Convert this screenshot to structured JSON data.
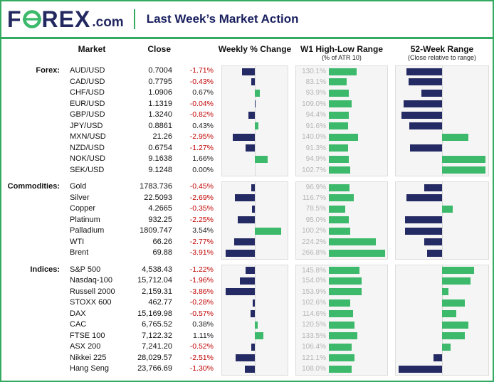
{
  "header": {
    "logo_f": "F",
    "logo_rex": "REX",
    "logo_com": ".com",
    "title": "Last Week’s Market Action"
  },
  "columns": {
    "market": "Market",
    "close": "Close",
    "weekly": "Weekly % Change",
    "w1": "W1 High-Low Range",
    "w1_sub": "(% of ATR 10)",
    "r52": "52-Week Range",
    "r52_sub": "(Close relative to range)"
  },
  "colors": {
    "navy": "#242a63",
    "green": "#3cb96a",
    "negative_text": "#c00000",
    "positive_text": "#1a1a1a",
    "w1_label": "#b5b5b5",
    "accent_border": "#35ab62"
  },
  "chart_data": {
    "type": "table",
    "title": "Last Week’s Market Action",
    "columns": [
      "Market",
      "Close",
      "Weekly % Change",
      "W1 High-Low Range (% of ATR 10)",
      "52-Week Range (Close relative to range)"
    ],
    "notes": "Weekly % bars: navy = negative, green = positive, anchored at zero. 52-week bars show close position vs range midpoint; pos_52w_pct estimated from pixels (0 = 52-wk low, 100 = 52-wk high).",
    "groups": [
      {
        "label": "Forex:",
        "rows": [
          {
            "market": "AUD/USD",
            "close": "0.7004",
            "weekly_change_pct": -1.71,
            "weekly_change": "-1.71%",
            "w1_range_pct": 130.1,
            "w1_range": "130.1%",
            "pos_52w_pct": 10
          },
          {
            "market": "CAD/USD",
            "close": "0.7795",
            "weekly_change_pct": -0.43,
            "weekly_change": "-0.43%",
            "w1_range_pct": 83.1,
            "w1_range": "83.1%",
            "pos_52w_pct": 12
          },
          {
            "market": "CHF/USD",
            "close": "1.0906",
            "weekly_change_pct": 0.67,
            "weekly_change": "0.67%",
            "w1_range_pct": 93.9,
            "w1_range": "93.9%",
            "pos_52w_pct": 27
          },
          {
            "market": "EUR/USD",
            "close": "1.1319",
            "weekly_change_pct": -0.04,
            "weekly_change": "-0.04%",
            "w1_range_pct": 109.0,
            "w1_range": "109.0%",
            "pos_52w_pct": 7
          },
          {
            "market": "GBP/USD",
            "close": "1.3240",
            "weekly_change_pct": -0.82,
            "weekly_change": "-0.82%",
            "w1_range_pct": 94.4,
            "w1_range": "94.4%",
            "pos_52w_pct": 4
          },
          {
            "market": "JPY/USD",
            "close": "0.8861",
            "weekly_change_pct": 0.43,
            "weekly_change": "0.43%",
            "w1_range_pct": 91.6,
            "w1_range": "91.6%",
            "pos_52w_pct": 13
          },
          {
            "market": "MXN/USD",
            "close": "21.26",
            "weekly_change_pct": -2.95,
            "weekly_change": "-2.95%",
            "w1_range_pct": 140.0,
            "w1_range": "140.0%",
            "pos_52w_pct": 80
          },
          {
            "market": "NZD/USD",
            "close": "0.6754",
            "weekly_change_pct": -1.27,
            "weekly_change": "-1.27%",
            "w1_range_pct": 91.3,
            "w1_range": "91.3%",
            "pos_52w_pct": 14
          },
          {
            "market": "NOK/USD",
            "close": "9.1638",
            "weekly_change_pct": 1.66,
            "weekly_change": "1.66%",
            "w1_range_pct": 94.9,
            "w1_range": "94.9%",
            "pos_52w_pct": 99
          },
          {
            "market": "SEK/USD",
            "close": "9.1248",
            "weekly_change_pct": 0.0,
            "weekly_change": "0.00%",
            "w1_range_pct": 102.7,
            "w1_range": "102.7%",
            "pos_52w_pct": 99
          }
        ]
      },
      {
        "label": "Commodities:",
        "rows": [
          {
            "market": "Gold",
            "close": "1783.736",
            "weekly_change_pct": -0.45,
            "weekly_change": "-0.45%",
            "w1_range_pct": 96.9,
            "w1_range": "96.9%",
            "pos_52w_pct": 30
          },
          {
            "market": "Silver",
            "close": "22.5093",
            "weekly_change_pct": -2.69,
            "weekly_change": "-2.69%",
            "w1_range_pct": 116.7,
            "w1_range": "116.7%",
            "pos_52w_pct": 10
          },
          {
            "market": "Copper",
            "close": "4.2665",
            "weekly_change_pct": -0.35,
            "weekly_change": "-0.35%",
            "w1_range_pct": 78.5,
            "w1_range": "78.5%",
            "pos_52w_pct": 62
          },
          {
            "market": "Platinum",
            "close": "932.25",
            "weekly_change_pct": -2.25,
            "weekly_change": "-2.25%",
            "w1_range_pct": 95.0,
            "w1_range": "95.0%",
            "pos_52w_pct": 8
          },
          {
            "market": "Palladium",
            "close": "1809.747",
            "weekly_change_pct": 3.54,
            "weekly_change": "3.54%",
            "w1_range_pct": 100.2,
            "w1_range": "100.2%",
            "pos_52w_pct": 8
          },
          {
            "market": "WTI",
            "close": "66.26",
            "weekly_change_pct": -2.77,
            "weekly_change": "-2.77%",
            "w1_range_pct": 224.2,
            "w1_range": "224.2%",
            "pos_52w_pct": 30
          },
          {
            "market": "Brent",
            "close": "69.88",
            "weekly_change_pct": -3.91,
            "weekly_change": "-3.91%",
            "w1_range_pct": 266.8,
            "w1_range": "266.8%",
            "pos_52w_pct": 33
          }
        ]
      },
      {
        "label": "Indices:",
        "rows": [
          {
            "market": "S&P 500",
            "close": "4,538.43",
            "weekly_change_pct": -1.22,
            "weekly_change": "-1.22%",
            "w1_range_pct": 145.8,
            "w1_range": "145.8%",
            "pos_52w_pct": 86
          },
          {
            "market": "Nasdaq-100",
            "close": "15,712.04",
            "weekly_change_pct": -1.96,
            "weekly_change": "-1.96%",
            "w1_range_pct": 154.0,
            "w1_range": "154.0%",
            "pos_52w_pct": 82
          },
          {
            "market": "Russell 2000",
            "close": "2,159.31",
            "weekly_change_pct": -3.86,
            "weekly_change": "-3.86%",
            "w1_range_pct": 153.9,
            "w1_range": "153.9%",
            "pos_52w_pct": 57
          },
          {
            "market": "STOXX 600",
            "close": "462.77",
            "weekly_change_pct": -0.28,
            "weekly_change": "-0.28%",
            "w1_range_pct": 102.6,
            "w1_range": "102.6%",
            "pos_52w_pct": 76
          },
          {
            "market": "DAX",
            "close": "15,169.98",
            "weekly_change_pct": -0.57,
            "weekly_change": "-0.57%",
            "w1_range_pct": 114.6,
            "w1_range": "114.6%",
            "pos_52w_pct": 66
          },
          {
            "market": "CAC",
            "close": "6,765.52",
            "weekly_change_pct": 0.38,
            "weekly_change": "0.38%",
            "w1_range_pct": 120.5,
            "w1_range": "120.5%",
            "pos_52w_pct": 80
          },
          {
            "market": "FTSE 100",
            "close": "7,122.32",
            "weekly_change_pct": 1.11,
            "weekly_change": "1.11%",
            "w1_range_pct": 133.5,
            "w1_range": "133.5%",
            "pos_52w_pct": 76
          },
          {
            "market": "ASX 200",
            "close": "7,241.20",
            "weekly_change_pct": -0.52,
            "weekly_change": "-0.52%",
            "w1_range_pct": 106.4,
            "w1_range": "106.4%",
            "pos_52w_pct": 60
          },
          {
            "market": "Nikkei 225",
            "close": "28,029.57",
            "weekly_change_pct": -2.51,
            "weekly_change": "-2.51%",
            "w1_range_pct": 121.1,
            "w1_range": "121.1%",
            "pos_52w_pct": 40
          },
          {
            "market": "Hang Seng",
            "close": "23,766.69",
            "weekly_change_pct": -1.3,
            "weekly_change": "-1.30%",
            "w1_range_pct": 108.0,
            "w1_range": "108.0%",
            "pos_52w_pct": 1
          }
        ]
      }
    ]
  }
}
